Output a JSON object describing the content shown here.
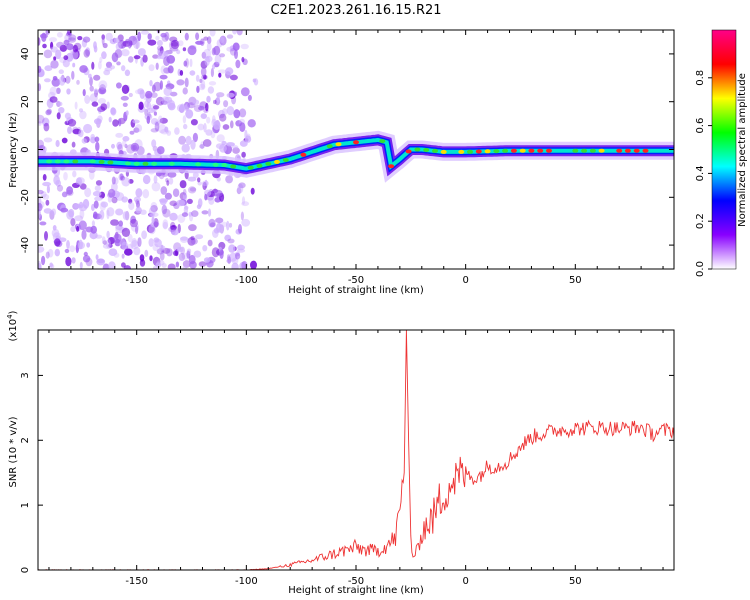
{
  "title": "C2E1.2023.261.16.15.R21",
  "chart_data": [
    {
      "type": "heatmap",
      "name": "spectrogram",
      "xlabel": "Height of straight line (km)",
      "ylabel": "Frequency (Hz)",
      "xlim": [
        -195,
        95
      ],
      "ylim": [
        -50,
        50
      ],
      "xticks": [
        -150,
        -100,
        -50,
        0,
        50
      ],
      "yticks": [
        -40,
        -20,
        0,
        20,
        40
      ],
      "ridge": {
        "x": [
          -195,
          -170,
          -150,
          -130,
          -110,
          -100,
          -90,
          -80,
          -70,
          -60,
          -50,
          -40,
          -36,
          -34,
          -30,
          -25,
          -20,
          -10,
          0,
          20,
          50,
          80,
          95
        ],
        "y": [
          -5,
          -5,
          -6,
          -6,
          -6.5,
          -8,
          -6,
          -4,
          -1,
          2,
          3,
          4,
          3,
          -7,
          -4,
          0,
          0,
          -1,
          -1,
          -0.5,
          -0.5,
          -0.5,
          -0.5
        ]
      },
      "scatter_region_xlim": [
        -195,
        -100
      ]
    },
    {
      "type": "colorbar",
      "name": "colorbar",
      "label": "Normalized spectral amplitude",
      "range": [
        0,
        1
      ],
      "ticks": [
        "0.0",
        "0.2",
        "0.4",
        "0.6",
        "0.8"
      ],
      "tick_values": [
        0.0,
        0.2,
        0.4,
        0.6,
        0.8
      ],
      "colors": [
        "#ffffff",
        "#8800ff",
        "#0000ff",
        "#00ffff",
        "#00ff00",
        "#ffff00",
        "#ff0000",
        "#ff0088"
      ]
    },
    {
      "type": "line",
      "name": "snr",
      "xlabel": "Height of straight line (km)",
      "ylabel": "SNR (10 * v/v)",
      "y_exponent": "(x10",
      "y_exponent_sup": "4",
      "y_exponent_close": ")",
      "xlim": [
        -195,
        95
      ],
      "ylim": [
        0,
        3.7
      ],
      "xticks": [
        -150,
        -100,
        -50,
        0,
        50
      ],
      "yticks": [
        0,
        1,
        2,
        3
      ],
      "color": "#ee3333",
      "x": [
        -195,
        -150,
        -100,
        -90,
        -80,
        -70,
        -60,
        -50,
        -45,
        -40,
        -35,
        -32,
        -30,
        -28,
        -27,
        -26,
        -25,
        -24,
        -22,
        -20,
        -15,
        -10,
        -5,
        0,
        5,
        10,
        15,
        20,
        25,
        30,
        40,
        50,
        60,
        70,
        80,
        85,
        90,
        95
      ],
      "y": [
        0.0,
        0.0,
        0.0,
        0.02,
        0.08,
        0.15,
        0.25,
        0.35,
        0.3,
        0.3,
        0.4,
        0.5,
        0.9,
        1.5,
        3.7,
        2.0,
        0.5,
        0.2,
        0.3,
        0.6,
        0.8,
        1.2,
        1.4,
        1.5,
        1.4,
        1.6,
        1.6,
        1.7,
        1.9,
        2.05,
        2.15,
        2.18,
        2.2,
        2.18,
        2.2,
        2.1,
        2.15,
        2.15
      ]
    }
  ]
}
